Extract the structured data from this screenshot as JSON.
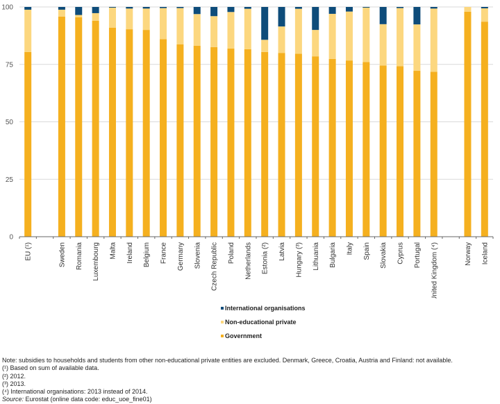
{
  "chart_data": {
    "type": "bar",
    "stacked": true,
    "title": "",
    "xlabel": "",
    "ylabel": "",
    "ylim": [
      0,
      100
    ],
    "yticks": [
      0,
      25,
      50,
      75,
      100
    ],
    "grid": true,
    "legend_position": "bottom-center",
    "categories": [
      "EU (¹)",
      "",
      "Sweden",
      "Romania",
      "Luxembourg",
      "Malta",
      "Ireland",
      "Belgium",
      "France",
      "Germany",
      "Slovenia",
      "Czech Republic",
      "Poland",
      "Netherlands",
      "Estonia (²)",
      "Latvia",
      "Hungary (³)",
      "Lithuania",
      "Bulgaria",
      "Italy",
      "Spain",
      "Slovakia",
      "Cyprus",
      "Portugal",
      "United Kingdom (⁴)",
      "",
      "Norway",
      "Iceland"
    ],
    "series": [
      {
        "name": "Government",
        "color": "#F5B01F",
        "values": [
          80.4,
          null,
          95.8,
          95.5,
          94.0,
          91.0,
          90.3,
          90.0,
          86.0,
          83.7,
          83.1,
          82.5,
          81.9,
          81.6,
          80.4,
          80.0,
          79.6,
          78.5,
          77.4,
          76.7,
          76.0,
          74.5,
          74.2,
          72.2,
          71.8,
          null,
          97.9,
          93.6
        ]
      },
      {
        "name": "Non-educational private",
        "color": "#FCD77F",
        "values": [
          18.4,
          null,
          3.0,
          1.0,
          3.3,
          8.7,
          9.0,
          9.3,
          13.5,
          15.8,
          13.8,
          13.5,
          15.9,
          17.6,
          5.3,
          11.5,
          19.6,
          11.5,
          19.6,
          21.3,
          23.7,
          18.0,
          25.3,
          20.2,
          27.5,
          null,
          2.1,
          5.8
        ]
      },
      {
        "name": "International organisations",
        "color": "#0E4C7A",
        "values": [
          1.2,
          null,
          1.2,
          3.5,
          2.7,
          0.3,
          0.7,
          0.7,
          0.5,
          0.5,
          3.1,
          4.0,
          2.2,
          0.8,
          14.3,
          8.5,
          0.8,
          10.0,
          3.0,
          2.0,
          0.3,
          7.5,
          0.5,
          7.6,
          0.7,
          null,
          0.0,
          0.6
        ]
      }
    ],
    "legend": [
      "International organisations",
      "Non-educational private",
      "Government"
    ]
  },
  "notes": {
    "note": "Note: subsidies to households and students from other non-educational private entities are excluded. Denmark, Greece, Croatia, Austria and Finland: not available.",
    "fn1": "(¹) Based on sum of available data.",
    "fn2": "(²) 2012.",
    "fn3": "(³) 2013.",
    "fn4": "(⁴) International organisations: 2013 instead of 2014.",
    "source_label": "Source:",
    "source_text": " Eurostat (online data code: educ_uoe_fine01)"
  }
}
